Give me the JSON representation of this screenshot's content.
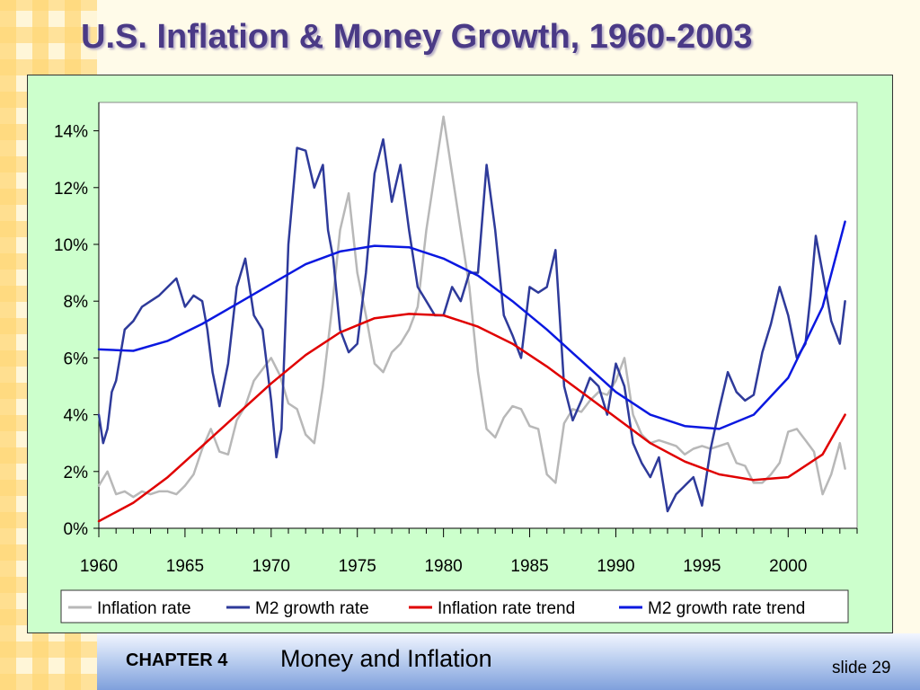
{
  "slide": {
    "title": "U.S. Inflation & Money Growth, 1960-2003",
    "chapter": "CHAPTER 4",
    "chapter_title": "Money and Inflation",
    "slide_number": "slide 29"
  },
  "colors": {
    "inflation": "#b8b8b8",
    "m2": "#2e3a9a",
    "inflation_trend": "#e00000",
    "m2_trend": "#0a18e0",
    "chart_background": "#ccffcc",
    "title": "#4a3a86"
  },
  "chart_data": {
    "type": "line",
    "title": "",
    "xlabel": "",
    "ylabel": "",
    "xlim": [
      1960,
      2004
    ],
    "ylim": [
      0,
      15
    ],
    "x_ticks": [
      1960,
      1965,
      1970,
      1975,
      1980,
      1985,
      1990,
      1995,
      2000
    ],
    "x_tick_labels": [
      "1960",
      "1965",
      "1970",
      "1975",
      "1980",
      "1985",
      "1990",
      "1995",
      "2000"
    ],
    "y_ticks": [
      0,
      2,
      4,
      6,
      8,
      10,
      12,
      14
    ],
    "y_tick_labels": [
      "0%",
      "2%",
      "4%",
      "6%",
      "8%",
      "10%",
      "12%",
      "14%"
    ],
    "grid": false,
    "legend_position": "bottom",
    "series": [
      {
        "name": "Inflation rate",
        "key": "inflation",
        "x": [
          1960,
          1960.5,
          1961,
          1961.5,
          1962,
          1962.5,
          1963,
          1963.5,
          1964,
          1964.5,
          1965,
          1965.5,
          1966,
          1966.5,
          1967,
          1967.5,
          1968,
          1968.5,
          1969,
          1969.5,
          1970,
          1970.5,
          1971,
          1971.5,
          1972,
          1972.5,
          1973,
          1973.5,
          1974,
          1974.5,
          1975,
          1975.5,
          1976,
          1976.5,
          1977,
          1977.5,
          1978,
          1978.5,
          1979,
          1979.5,
          1980,
          1980.5,
          1981,
          1981.5,
          1982,
          1982.5,
          1983,
          1983.5,
          1984,
          1984.5,
          1985,
          1985.5,
          1986,
          1986.5,
          1987,
          1987.5,
          1988,
          1988.5,
          1989,
          1989.5,
          1990,
          1990.5,
          1991,
          1991.5,
          1992,
          1992.5,
          1993,
          1993.5,
          1994,
          1994.5,
          1995,
          1995.5,
          1996,
          1996.5,
          1997,
          1997.5,
          1998,
          1998.5,
          1999,
          1999.5,
          2000,
          2000.5,
          2001,
          2001.5,
          2002,
          2002.5,
          2003,
          2003.3
        ],
        "values": [
          1.5,
          2.0,
          1.2,
          1.3,
          1.1,
          1.3,
          1.2,
          1.3,
          1.3,
          1.2,
          1.5,
          1.9,
          2.8,
          3.5,
          2.7,
          2.6,
          3.8,
          4.3,
          5.2,
          5.6,
          6.0,
          5.4,
          4.4,
          4.2,
          3.3,
          3.0,
          5.0,
          7.6,
          10.5,
          11.8,
          9.0,
          7.5,
          5.8,
          5.5,
          6.2,
          6.5,
          7.0,
          7.8,
          10.5,
          12.5,
          14.5,
          12.5,
          10.5,
          8.5,
          5.5,
          3.5,
          3.2,
          3.9,
          4.3,
          4.2,
          3.6,
          3.5,
          1.9,
          1.6,
          3.7,
          4.2,
          4.1,
          4.5,
          4.8,
          4.7,
          5.2,
          6.0,
          4.0,
          3.3,
          3.0,
          3.1,
          3.0,
          2.9,
          2.6,
          2.8,
          2.9,
          2.8,
          2.9,
          3.0,
          2.3,
          2.2,
          1.6,
          1.6,
          1.9,
          2.3,
          3.4,
          3.5,
          3.1,
          2.7,
          1.2,
          1.9,
          3.0,
          2.1
        ]
      },
      {
        "name": "M2 growth rate",
        "key": "m2",
        "x": [
          1960,
          1960.25,
          1960.5,
          1960.75,
          1961,
          1961.5,
          1962,
          1962.5,
          1963,
          1963.5,
          1964,
          1964.5,
          1965,
          1965.5,
          1966,
          1966.3,
          1966.6,
          1967,
          1967.5,
          1968,
          1968.5,
          1969,
          1969.5,
          1970,
          1970.3,
          1970.6,
          1971,
          1971.5,
          1972,
          1972.5,
          1973,
          1973.3,
          1973.6,
          1974,
          1974.5,
          1975,
          1975.5,
          1976,
          1976.5,
          1977,
          1977.5,
          1978,
          1978.5,
          1979,
          1979.5,
          1980,
          1980.5,
          1981,
          1981.5,
          1982,
          1982.5,
          1983,
          1983.5,
          1984,
          1984.5,
          1985,
          1985.5,
          1986,
          1986.5,
          1987,
          1987.5,
          1988,
          1988.5,
          1989,
          1989.5,
          1990,
          1990.5,
          1991,
          1991.5,
          1992,
          1992.5,
          1993,
          1993.5,
          1994,
          1994.5,
          1995,
          1995.5,
          1996,
          1996.5,
          1997,
          1997.5,
          1998,
          1998.5,
          1999,
          1999.5,
          2000,
          2000.5,
          2001,
          2001.3,
          2001.6,
          2002,
          2002.5,
          2003,
          2003.3
        ],
        "values": [
          4.0,
          3.0,
          3.5,
          4.8,
          5.2,
          7.0,
          7.3,
          7.8,
          8.0,
          8.2,
          8.5,
          8.8,
          7.8,
          8.2,
          8.0,
          7.0,
          5.5,
          4.3,
          5.8,
          8.5,
          9.5,
          7.5,
          7.0,
          4.5,
          2.5,
          3.5,
          10.0,
          13.4,
          13.3,
          12.0,
          12.8,
          10.5,
          9.5,
          7.0,
          6.2,
          6.5,
          9.0,
          12.5,
          13.7,
          11.5,
          12.8,
          10.5,
          8.5,
          8.0,
          7.5,
          7.5,
          8.5,
          8.0,
          9.0,
          9.0,
          12.8,
          10.5,
          7.5,
          6.8,
          6.0,
          8.5,
          8.3,
          8.5,
          9.8,
          5.0,
          3.8,
          4.5,
          5.3,
          5.0,
          4.0,
          5.8,
          5.0,
          3.0,
          2.3,
          1.8,
          2.5,
          0.6,
          1.2,
          1.5,
          1.8,
          0.8,
          2.8,
          4.2,
          5.5,
          4.8,
          4.5,
          4.7,
          6.2,
          7.2,
          8.5,
          7.5,
          6.0,
          6.5,
          8.2,
          10.3,
          9.0,
          7.3,
          6.5,
          8.0
        ]
      },
      {
        "name": "Inflation rate trend",
        "key": "inflation_trend",
        "x": [
          1960,
          1962,
          1964,
          1966,
          1968,
          1970,
          1972,
          1974,
          1976,
          1978,
          1980,
          1982,
          1984,
          1986,
          1988,
          1990,
          1992,
          1994,
          1996,
          1998,
          2000,
          2002,
          2003.3
        ],
        "values": [
          0.25,
          0.9,
          1.8,
          2.9,
          4.0,
          5.1,
          6.1,
          6.9,
          7.4,
          7.55,
          7.5,
          7.1,
          6.5,
          5.7,
          4.8,
          3.9,
          3.0,
          2.35,
          1.9,
          1.7,
          1.8,
          2.6,
          4.0
        ]
      },
      {
        "name": "M2 growth rate trend",
        "key": "m2_trend",
        "x": [
          1960,
          1962,
          1964,
          1966,
          1968,
          1970,
          1972,
          1974,
          1976,
          1978,
          1980,
          1982,
          1984,
          1986,
          1988,
          1990,
          1992,
          1994,
          1996,
          1998,
          2000,
          2002,
          2003.3
        ],
        "values": [
          6.3,
          6.25,
          6.6,
          7.2,
          7.9,
          8.6,
          9.3,
          9.75,
          9.95,
          9.9,
          9.5,
          8.9,
          8.0,
          7.0,
          5.9,
          4.8,
          4.0,
          3.6,
          3.5,
          4.0,
          5.3,
          7.8,
          10.8
        ]
      }
    ]
  }
}
